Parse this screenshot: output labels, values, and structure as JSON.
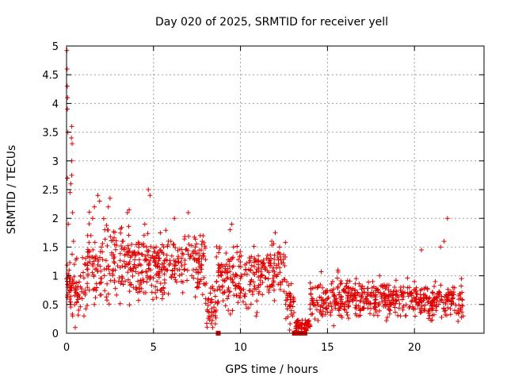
{
  "chart_data": {
    "type": "scatter",
    "title": "Day 020 of 2025, SRMTID for receiver yell",
    "xlabel": "GPS time / hours",
    "ylabel": "SRMTID / TECUs",
    "xlim": [
      0,
      24
    ],
    "ylim": [
      0,
      5
    ],
    "xticks": [
      0,
      5,
      10,
      15,
      20
    ],
    "xtick_labels": [
      "0",
      "5",
      "10",
      "15",
      "20"
    ],
    "yticks": [
      0,
      0.5,
      1,
      1.5,
      2,
      2.5,
      3,
      3.5,
      4,
      4.5,
      5
    ],
    "ytick_labels": [
      "0",
      "0.5",
      "1",
      "1.5",
      "2",
      "2.5",
      "3",
      "3.5",
      "4",
      "4.5",
      "5"
    ],
    "grid": true,
    "marker": "+",
    "color": "#e00000",
    "series": [
      {
        "name": "SRMTID",
        "points": [
          [
            0.02,
            4.92
          ],
          [
            0.03,
            4.6
          ],
          [
            0.04,
            4.3
          ],
          [
            0.06,
            4.1
          ],
          [
            0.05,
            3.9
          ],
          [
            0.08,
            3.5
          ],
          [
            0.3,
            3.6
          ],
          [
            0.28,
            3.4
          ],
          [
            0.32,
            3.3
          ],
          [
            0.3,
            3.0
          ],
          [
            0.3,
            2.75
          ],
          [
            0.25,
            2.6
          ],
          [
            0.2,
            2.45
          ],
          [
            0.05,
            2.7
          ],
          [
            0.35,
            2.1
          ],
          [
            0.1,
            1.9
          ],
          [
            0.4,
            1.6
          ],
          [
            0.45,
            1.2
          ],
          [
            0.15,
            1.1
          ],
          [
            0.2,
            0.9
          ],
          [
            0.25,
            0.5
          ],
          [
            0.35,
            0.3
          ],
          [
            0.5,
            0.1
          ],
          [
            0.6,
            0.7
          ],
          [
            0.7,
            0.4
          ],
          [
            0.8,
            1.0
          ],
          [
            0.9,
            0.6
          ],
          [
            1.0,
            0.3
          ],
          [
            1.1,
            1.3
          ],
          [
            1.2,
            0.8
          ],
          [
            1.4,
            1.7
          ],
          [
            1.5,
            2.0
          ],
          [
            1.6,
            2.2
          ],
          [
            1.8,
            2.4
          ],
          [
            1.9,
            2.3
          ],
          [
            2.0,
            1.5
          ],
          [
            2.2,
            1.8
          ],
          [
            2.4,
            2.2
          ],
          [
            2.5,
            2.35
          ],
          [
            2.6,
            1.4
          ],
          [
            2.8,
            1.1
          ],
          [
            3.0,
            0.9
          ],
          [
            3.2,
            1.6
          ],
          [
            3.5,
            2.1
          ],
          [
            3.6,
            2.15
          ],
          [
            3.8,
            1.4
          ],
          [
            4.0,
            0.8
          ],
          [
            4.2,
            1.2
          ],
          [
            4.5,
            1.9
          ],
          [
            4.6,
            1.5
          ],
          [
            4.7,
            2.5
          ],
          [
            4.8,
            2.4
          ],
          [
            5.0,
            1.3
          ],
          [
            5.2,
            0.9
          ],
          [
            5.5,
            0.6
          ],
          [
            5.8,
            1.1
          ],
          [
            6.0,
            1.6
          ],
          [
            6.2,
            2.0
          ],
          [
            6.4,
            1.3
          ],
          [
            6.6,
            0.9
          ],
          [
            6.8,
            1.2
          ],
          [
            7.0,
            2.1
          ],
          [
            7.2,
            1.0
          ],
          [
            7.4,
            1.5
          ],
          [
            7.6,
            0.8
          ],
          [
            7.8,
            1.6
          ],
          [
            8.0,
            0.6
          ],
          [
            8.2,
            0.3
          ],
          [
            8.4,
            0.1
          ],
          [
            8.6,
            0.4
          ],
          [
            8.8,
            1.5
          ],
          [
            9.0,
            0.7
          ],
          [
            9.2,
            1.2
          ],
          [
            9.4,
            1.8
          ],
          [
            9.5,
            1.9
          ],
          [
            9.6,
            1.5
          ],
          [
            9.8,
            1.0
          ],
          [
            10.0,
            0.7
          ],
          [
            10.3,
            0.5
          ],
          [
            10.6,
            0.9
          ],
          [
            10.9,
            0.3
          ],
          [
            11.2,
            1.0
          ],
          [
            11.5,
            1.3
          ],
          [
            11.8,
            1.6
          ],
          [
            12.0,
            1.75
          ],
          [
            12.2,
            1.4
          ],
          [
            12.4,
            0.9
          ],
          [
            12.6,
            0.5
          ],
          [
            12.8,
            0.7
          ],
          [
            13.0,
            0.3
          ],
          [
            13.2,
            0.05
          ],
          [
            13.5,
            0.02
          ],
          [
            13.8,
            0.15
          ],
          [
            14.0,
            0.5
          ],
          [
            14.3,
            0.8
          ],
          [
            14.6,
            0.4
          ],
          [
            15.0,
            0.6
          ],
          [
            15.3,
            0.9
          ],
          [
            15.6,
            1.1
          ],
          [
            16.0,
            0.5
          ],
          [
            16.4,
            0.7
          ],
          [
            16.8,
            0.3
          ],
          [
            17.2,
            0.6
          ],
          [
            17.6,
            0.9
          ],
          [
            18.0,
            1.0
          ],
          [
            18.4,
            0.8
          ],
          [
            18.8,
            0.5
          ],
          [
            19.2,
            0.3
          ],
          [
            19.6,
            0.7
          ],
          [
            20.0,
            0.9
          ],
          [
            20.4,
            1.45
          ],
          [
            20.8,
            0.6
          ],
          [
            21.2,
            0.9
          ],
          [
            21.5,
            1.5
          ],
          [
            21.7,
            1.6
          ],
          [
            21.9,
            2.0
          ],
          [
            22.2,
            0.6
          ],
          [
            22.5,
            0.4
          ],
          [
            22.7,
            0.95
          ],
          [
            22.8,
            0.3
          ]
        ]
      }
    ],
    "square_markers": [
      [
        8.72,
        0.0
      ],
      [
        13.1,
        0.0
      ],
      [
        13.3,
        0.0
      ],
      [
        13.5,
        0.0
      ],
      [
        13.7,
        0.0
      ]
    ],
    "dense_bands": [
      {
        "x0": 0.0,
        "x1": 1.2,
        "ymin": 0.05,
        "ymax": 1.4
      },
      {
        "x0": 1.2,
        "x1": 4.5,
        "ymin": 0.2,
        "ymax": 1.9
      },
      {
        "x0": 4.5,
        "x1": 8.0,
        "ymin": 0.4,
        "ymax": 1.8
      },
      {
        "x0": 8.0,
        "x1": 8.6,
        "ymin": 0.0,
        "ymax": 0.8
      },
      {
        "x0": 8.6,
        "x1": 11.0,
        "ymin": 0.15,
        "ymax": 1.5
      },
      {
        "x0": 11.0,
        "x1": 12.6,
        "ymin": 0.4,
        "ymax": 1.55
      },
      {
        "x0": 12.6,
        "x1": 13.1,
        "ymin": 0.0,
        "ymax": 0.9
      },
      {
        "x0": 13.1,
        "x1": 14.0,
        "ymin": 0.0,
        "ymax": 0.25
      },
      {
        "x0": 14.0,
        "x1": 16.0,
        "ymin": 0.05,
        "ymax": 1.0
      },
      {
        "x0": 16.0,
        "x1": 20.0,
        "ymin": 0.15,
        "ymax": 0.95
      },
      {
        "x0": 20.0,
        "x1": 22.8,
        "ymin": 0.15,
        "ymax": 0.85
      }
    ],
    "dense_count": 1400
  }
}
